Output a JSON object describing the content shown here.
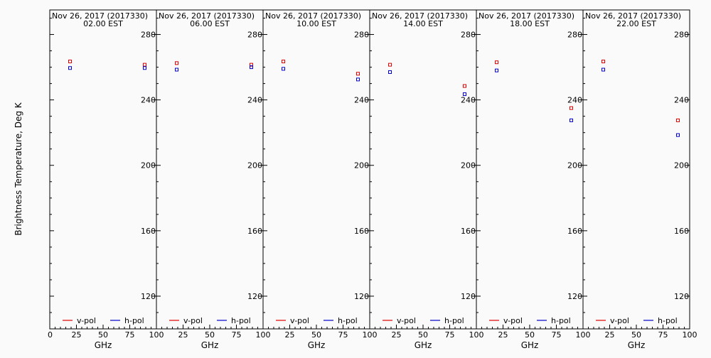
{
  "chart_data": {
    "type": "scatter",
    "ylabel": "Brightness Temperature, Deg K",
    "xlabel": "GHz",
    "xlim": [
      0,
      100
    ],
    "ylim": [
      100,
      295
    ],
    "xticks": [
      0,
      25,
      50,
      75,
      100
    ],
    "yticks": [
      120,
      160,
      200,
      240,
      280
    ],
    "legend_position": "bottom",
    "colors": {
      "v-pol": "#e00000",
      "h-pol": "#0000cc"
    },
    "panels": [
      {
        "date": "Nov 26, 2017 (2017330)",
        "time": "02.00 EST",
        "x": [
          19,
          89
        ],
        "series": [
          {
            "name": "v-pol",
            "values": [
              263.5,
              261.5
            ]
          },
          {
            "name": "h-pol",
            "values": [
              259.5,
              259.5
            ]
          }
        ]
      },
      {
        "date": "Nov 26, 2017 (2017330)",
        "time": "06.00 EST",
        "x": [
          19,
          89
        ],
        "series": [
          {
            "name": "v-pol",
            "values": [
              262.5,
              261.5
            ]
          },
          {
            "name": "h-pol",
            "values": [
              258.5,
              260.0
            ]
          }
        ]
      },
      {
        "date": "Nov 26, 2017 (2017330)",
        "time": "10.00 EST",
        "x": [
          19,
          89
        ],
        "series": [
          {
            "name": "v-pol",
            "values": [
              263.5,
              256.0
            ]
          },
          {
            "name": "h-pol",
            "values": [
              259.0,
              252.5
            ]
          }
        ]
      },
      {
        "date": "Nov 26, 2017 (2017330)",
        "time": "14.00 EST",
        "x": [
          19,
          89
        ],
        "series": [
          {
            "name": "v-pol",
            "values": [
              261.5,
              248.5
            ]
          },
          {
            "name": "h-pol",
            "values": [
              257.0,
              243.5
            ]
          }
        ]
      },
      {
        "date": "Nov 26, 2017 (2017330)",
        "time": "18.00 EST",
        "x": [
          19,
          89
        ],
        "series": [
          {
            "name": "v-pol",
            "values": [
              263.0,
              235.0
            ]
          },
          {
            "name": "h-pol",
            "values": [
              258.0,
              227.5
            ]
          }
        ]
      },
      {
        "date": "Nov 26, 2017 (2017330)",
        "time": "22.00 EST",
        "x": [
          19,
          89
        ],
        "series": [
          {
            "name": "v-pol",
            "values": [
              263.5,
              227.5
            ]
          },
          {
            "name": "h-pol",
            "values": [
              258.5,
              218.5
            ]
          }
        ]
      }
    ]
  }
}
